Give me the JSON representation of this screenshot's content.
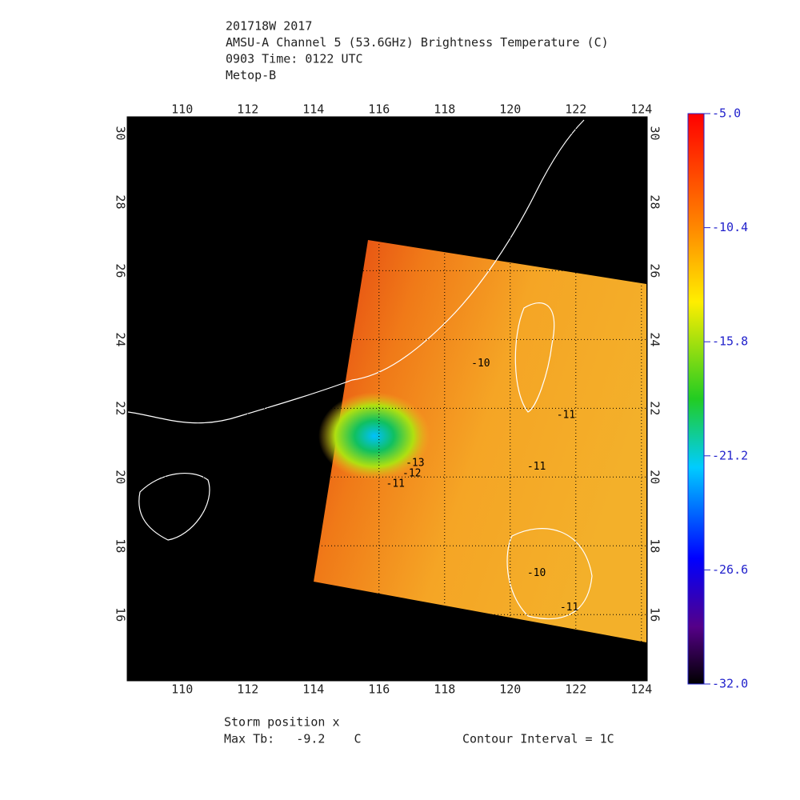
{
  "chart_data": {
    "type": "map",
    "title_lines": [
      "201718W 2017",
      "AMSU-A Channel 5 (53.6GHz) Brightness Temperature (C)",
      "0903 Time: 0122 UTC",
      "Metop-B"
    ],
    "xlim": [
      108.3,
      124.2
    ],
    "xticks": [
      110,
      112,
      114,
      116,
      118,
      120,
      122,
      124
    ],
    "ylim": [
      14.05,
      30.5
    ],
    "yticks": [
      16,
      18,
      20,
      22,
      24,
      26,
      28,
      30
    ],
    "colorbar": {
      "lim": [
        -32,
        -5
      ],
      "ticks": [
        {
          "value": -5,
          "label": "-5.0"
        },
        {
          "value": -10.4,
          "label": "-10.4"
        },
        {
          "value": -15.8,
          "label": "-15.8"
        },
        {
          "value": -21.2,
          "label": "-21.2"
        },
        {
          "value": -26.6,
          "label": "-26.6"
        },
        {
          "value": -32,
          "label": "-32.0"
        }
      ]
    },
    "contour_labels": [
      {
        "text": "-10",
        "x": 119.1,
        "y": 23.3
      },
      {
        "text": "-11",
        "x": 121.7,
        "y": 21.8
      },
      {
        "text": "-11",
        "x": 120.8,
        "y": 20.3
      },
      {
        "text": "-12",
        "x": 117.0,
        "y": 20.1
      },
      {
        "text": "-13",
        "x": 117.1,
        "y": 20.4
      },
      {
        "text": "-11",
        "x": 116.5,
        "y": 19.8
      },
      {
        "text": "-10",
        "x": 120.8,
        "y": 17.2
      },
      {
        "text": "-11",
        "x": 121.8,
        "y": 16.2
      }
    ],
    "footer": {
      "storm": "Storm position x",
      "max_tb": "Max Tb:   -9.2    C",
      "contour": "Contour Interval = 1C"
    }
  }
}
